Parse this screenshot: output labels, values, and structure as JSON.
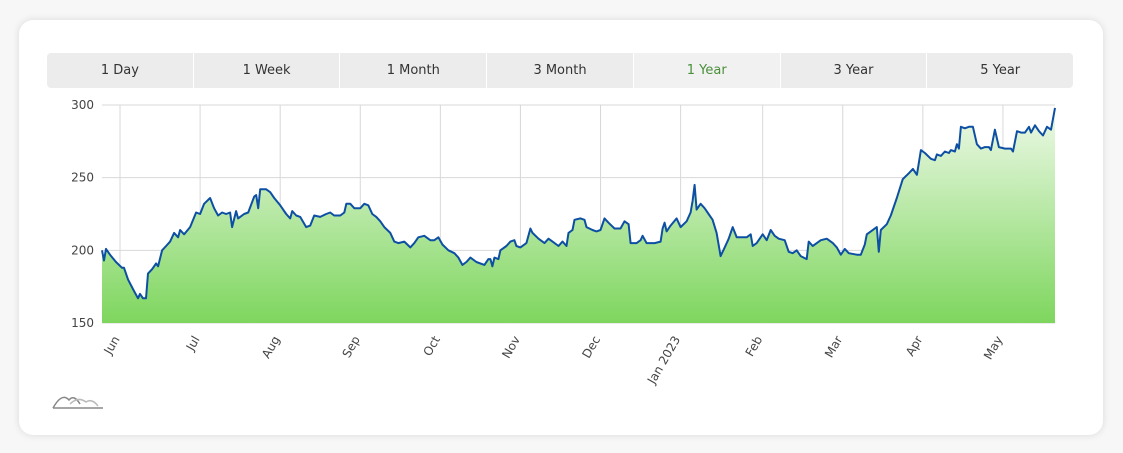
{
  "tabs": [
    "1 Day",
    "1 Week",
    "1 Month",
    "3 Month",
    "1 Year",
    "3 Year",
    "5 Year"
  ],
  "chart_data": {
    "type": "area",
    "color": "#0d4fa3",
    "grid": true,
    "xlim": [
      0,
      952
    ],
    "ylim": [
      150,
      300
    ],
    "yticks": [
      150,
      200,
      250,
      300
    ],
    "xticks": [
      {
        "value": 18,
        "label": "Jun"
      },
      {
        "value": 98,
        "label": "Jul"
      },
      {
        "value": 178,
        "label": "Aug"
      },
      {
        "value": 258,
        "label": "Sep"
      },
      {
        "value": 338,
        "label": "Oct"
      },
      {
        "value": 418,
        "label": "Nov"
      },
      {
        "value": 498,
        "label": "Dec"
      },
      {
        "value": 578,
        "label": "Jan 2023"
      },
      {
        "value": 660,
        "label": "Feb"
      },
      {
        "value": 740,
        "label": "Mar"
      },
      {
        "value": 820,
        "label": "Apr"
      },
      {
        "value": 900,
        "label": "May"
      }
    ],
    "x": [
      0,
      2,
      4,
      8,
      14,
      20,
      22,
      26,
      32,
      36,
      38,
      41,
      44,
      46,
      50,
      54,
      56,
      60,
      64,
      68,
      72,
      76,
      78,
      82,
      88,
      94,
      98,
      102,
      108,
      112,
      116,
      120,
      124,
      128,
      130,
      134,
      136,
      142,
      146,
      152,
      154,
      156,
      158,
      164,
      168,
      172,
      178,
      184,
      188,
      190,
      194,
      198,
      204,
      208,
      212,
      218,
      224,
      228,
      232,
      238,
      242,
      244,
      248,
      252,
      258,
      262,
      266,
      270,
      274,
      278,
      282,
      288,
      292,
      296,
      302,
      308,
      312,
      316,
      322,
      328,
      332,
      336,
      340,
      346,
      352,
      356,
      360,
      364,
      368,
      374,
      382,
      386,
      388,
      390,
      392,
      396,
      398,
      404,
      408,
      412,
      414,
      418,
      424,
      428,
      430,
      436,
      442,
      446,
      450,
      456,
      460,
      464,
      466,
      470,
      472,
      478,
      482,
      484,
      490,
      494,
      498,
      502,
      506,
      512,
      518,
      522,
      526,
      528,
      534,
      538,
      540,
      544,
      552,
      558,
      560,
      562,
      564,
      568,
      574,
      578,
      584,
      588,
      590,
      592,
      594,
      598,
      602,
      606,
      610,
      614,
      618,
      622,
      626,
      630,
      634,
      638,
      644,
      648,
      650,
      654,
      660,
      664,
      668,
      672,
      676,
      682,
      686,
      690,
      694,
      698,
      704,
      706,
      710,
      714,
      718,
      724,
      730,
      734,
      738,
      742,
      746,
      754,
      758,
      762,
      764,
      768,
      774,
      776,
      778,
      784,
      788,
      794,
      800,
      806,
      810,
      814,
      818,
      822,
      828,
      832,
      834,
      838,
      842,
      846,
      848,
      852,
      854,
      856,
      858,
      862,
      866,
      870,
      874,
      878,
      882,
      886,
      888,
      892,
      896,
      902,
      908,
      910,
      914,
      918,
      922,
      926,
      928,
      932,
      936,
      940,
      944,
      948,
      952
    ],
    "values": [
      200,
      193,
      201,
      197,
      192,
      188,
      188,
      180,
      172,
      167,
      170,
      167,
      167,
      184,
      187,
      191,
      189,
      200,
      203,
      206,
      212,
      209,
      214,
      211,
      216,
      226,
      225,
      232,
      236,
      229,
      224,
      226,
      225,
      226,
      216,
      227,
      222,
      225,
      226,
      237,
      238,
      229,
      242,
      242,
      240,
      236,
      231,
      225,
      222,
      227,
      224,
      223,
      216,
      217,
      224,
      223,
      225,
      226,
      224,
      224,
      226,
      232,
      232,
      229,
      229,
      232,
      231,
      225,
      223,
      220,
      216,
      212,
      206,
      205,
      206,
      202,
      205,
      209,
      210,
      207,
      207,
      209,
      204,
      200,
      198,
      195,
      190,
      192,
      195,
      192,
      190,
      194,
      194,
      189,
      195,
      194,
      200,
      203,
      206,
      207,
      203,
      202,
      205,
      215,
      212,
      208,
      205,
      208,
      206,
      203,
      206,
      203,
      212,
      214,
      221,
      222,
      221,
      216,
      214,
      213,
      214,
      222,
      219,
      215,
      215,
      220,
      218,
      205,
      205,
      207,
      210,
      205,
      205,
      206,
      215,
      219,
      213,
      217,
      222,
      216,
      220,
      226,
      234,
      245,
      228,
      232,
      229,
      225,
      221,
      212,
      196,
      202,
      208,
      216,
      209,
      209,
      209,
      211,
      203,
      205,
      211,
      207,
      214,
      210,
      208,
      207,
      199,
      198,
      200,
      196,
      194,
      206,
      203,
      205,
      207,
      208,
      205,
      202,
      197,
      201,
      198,
      197,
      197,
      204,
      211,
      213,
      216,
      199,
      214,
      218,
      224,
      236,
      249,
      253,
      256,
      252,
      269,
      267,
      263,
      262,
      266,
      265,
      268,
      267,
      269,
      268,
      273,
      270,
      285,
      284,
      285,
      285,
      273,
      270,
      271,
      271,
      269,
      283,
      271,
      270,
      270,
      268,
      282,
      281,
      281,
      285,
      281,
      286,
      282,
      279,
      285,
      283,
      298
    ]
  }
}
